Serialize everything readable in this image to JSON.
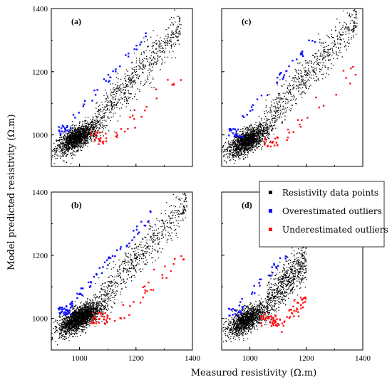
{
  "chart_data": {
    "type": "scatter",
    "layout": "2x2 grid",
    "xlabel": "Measured resistivity (Ω.m)",
    "ylabel": "Model predicted resistivity (Ω.m)",
    "xlim": [
      900,
      1400
    ],
    "ylim": [
      900,
      1400
    ],
    "xticks": [
      1000,
      1200,
      1400
    ],
    "yticks": [
      1000,
      1200,
      1400
    ],
    "xtick_labels": [
      "1000",
      "1200",
      "1400"
    ],
    "ytick_labels": [
      "1000",
      "1200",
      "1400"
    ],
    "legend": {
      "placement": "panel-d-top-right",
      "entries": [
        {
          "label": "Resistivity data points",
          "color": "#000000"
        },
        {
          "label": "Overestimated outliers",
          "color": "#1010ff"
        },
        {
          "label": "Underestimated outliers",
          "color": "#ff1010"
        }
      ]
    },
    "panels": [
      {
        "id": "a",
        "label": "(a)",
        "position": "top-left",
        "show_x_ticks": false,
        "show_y_ticks": true,
        "distribution": {
          "cluster_center": [
            990,
            990
          ],
          "cluster_size": 1500,
          "trend_range": [
            1050,
            1360
          ],
          "over_n": 50,
          "under_n": 45
        }
      },
      {
        "id": "c",
        "label": "(c)",
        "position": "top-right",
        "show_x_ticks": false,
        "show_y_ticks": false,
        "distribution": {
          "cluster_center": [
            990,
            980
          ],
          "cluster_size": 1500,
          "trend_range": [
            1050,
            1380
          ],
          "over_n": 55,
          "under_n": 40
        }
      },
      {
        "id": "b",
        "label": "(b)",
        "position": "bottom-left",
        "show_x_ticks": true,
        "show_y_ticks": true,
        "distribution": {
          "cluster_center": [
            1000,
            1000
          ],
          "cluster_size": 2000,
          "trend_range": [
            1050,
            1380
          ],
          "over_n": 90,
          "under_n": 60
        }
      },
      {
        "id": "d",
        "label": "(d)",
        "position": "bottom-right",
        "show_x_ticks": true,
        "show_y_ticks": false,
        "distribution": {
          "cluster_center": [
            990,
            995
          ],
          "cluster_size": 1300,
          "trend_range": [
            1060,
            1200
          ],
          "over_n": 40,
          "under_n": 80
        }
      }
    ]
  }
}
